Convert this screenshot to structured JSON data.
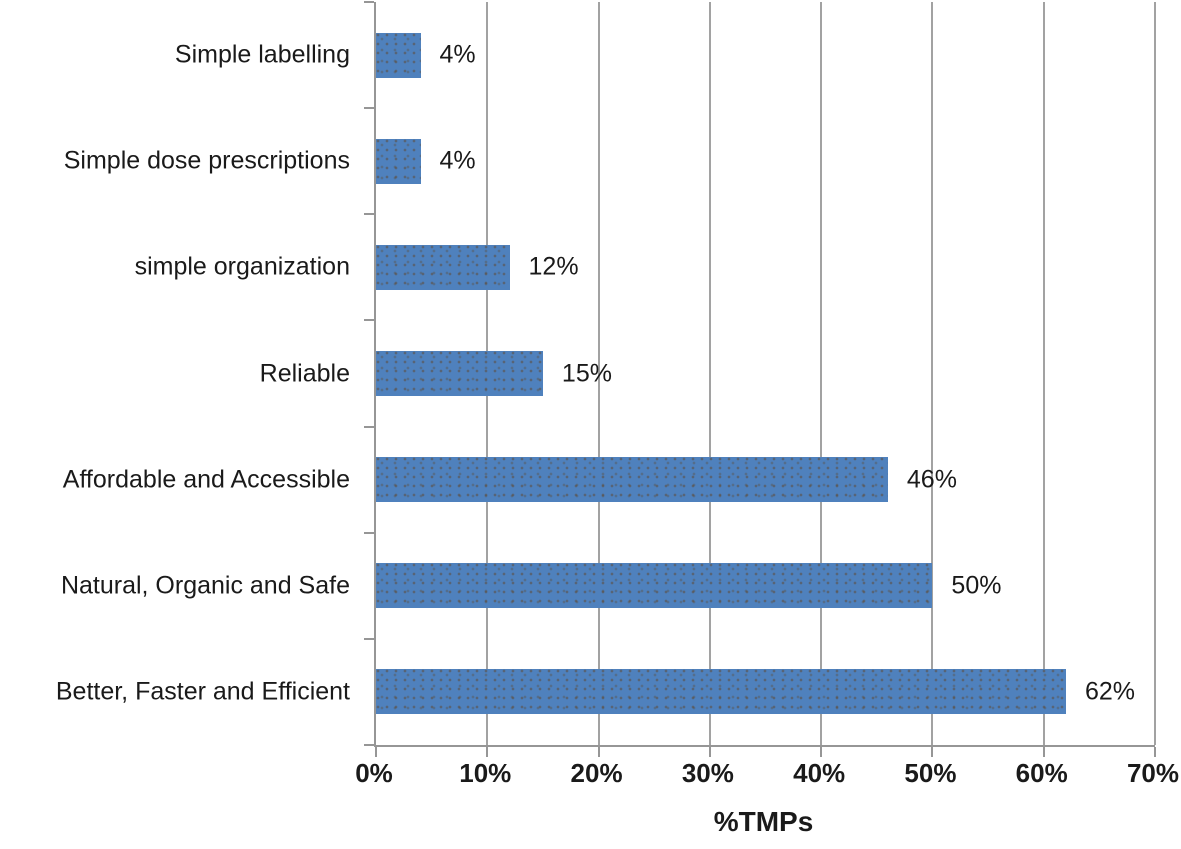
{
  "chart_data": {
    "type": "bar",
    "orientation": "horizontal",
    "title": "",
    "categories": [
      "Simple labelling",
      "Simple dose prescriptions",
      "simple organization",
      "Reliable",
      "Affordable and Accessible",
      "Natural, Organic and Safe",
      "Better, Faster and Efficient"
    ],
    "values": [
      4,
      4,
      12,
      15,
      46,
      50,
      62
    ],
    "data_labels": [
      "4%",
      "4%",
      "12%",
      "15%",
      "46%",
      "50%",
      "62%"
    ],
    "xlabel": "%TMPs",
    "ylabel": "",
    "xlim": [
      0,
      70
    ],
    "x_tick_values": [
      0,
      10,
      20,
      30,
      40,
      50,
      60,
      70
    ],
    "x_ticks": [
      "0%",
      "10%",
      "20%",
      "30%",
      "40%",
      "50%",
      "60%",
      "70%"
    ],
    "grid": "vertical",
    "legend": "none",
    "colors": {
      "bar": "#4f81bd",
      "grid": "#a2a2a2",
      "axis": "#969696",
      "text": "#1a1a1a"
    }
  }
}
